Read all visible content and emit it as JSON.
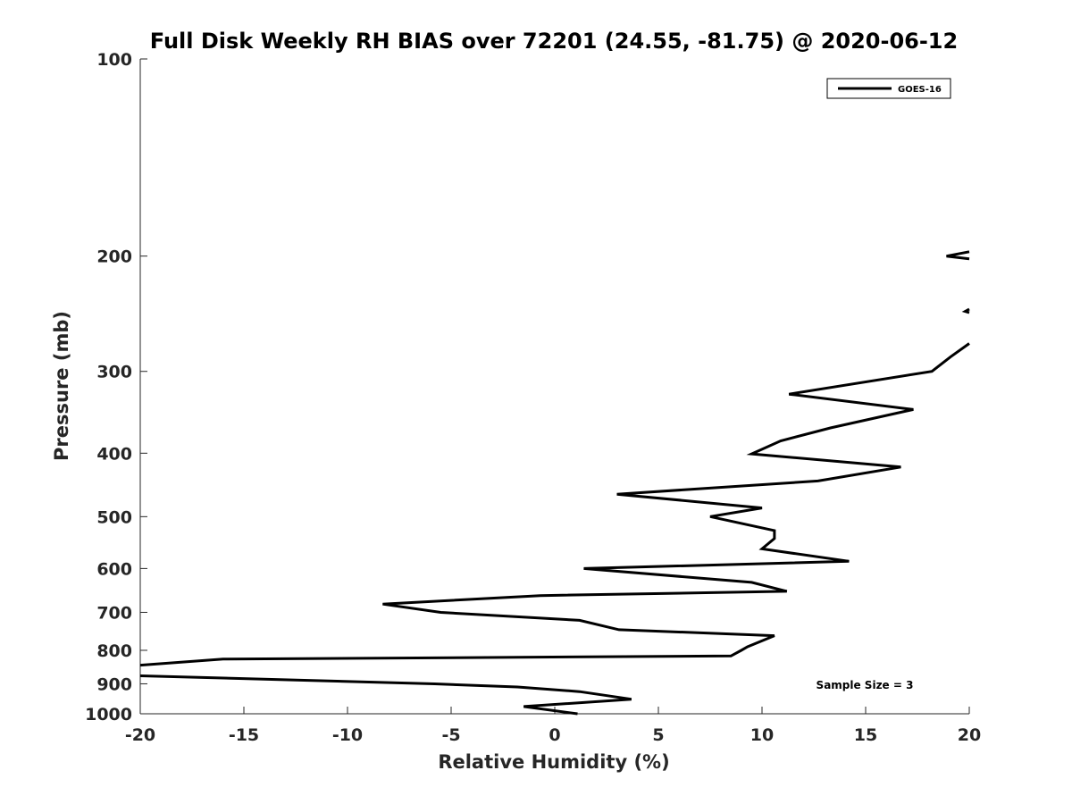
{
  "chart_data": {
    "type": "line",
    "title": "Full Disk Weekly RH BIAS over 72201 (24.55, -81.75) @ 2020-06-12",
    "xlabel": "Relative Humidity (%)",
    "ylabel": "Pressure (mb)",
    "xlim": [
      -20,
      20
    ],
    "ylim": [
      100,
      1000
    ],
    "y_scale": "log",
    "y_reversed": true,
    "x_ticks": [
      -20,
      -15,
      -10,
      -5,
      0,
      5,
      10,
      15,
      20
    ],
    "x_tick_labels": [
      "-20",
      "-15",
      "-10",
      "-5",
      "0",
      "5",
      "10",
      "15",
      "20"
    ],
    "y_ticks": [
      100,
      200,
      300,
      400,
      500,
      600,
      700,
      800,
      900,
      1000
    ],
    "y_tick_labels": [
      "100",
      "200",
      "300",
      "400",
      "500",
      "600",
      "700",
      "800",
      "900",
      "1000"
    ],
    "grid": false,
    "legend_position": "top-right",
    "annotation": "Sample Size = 3",
    "series": [
      {
        "name": "GOES-16",
        "color": "#000000",
        "segments": [
          [
            {
              "x": 1.1,
              "y": 1000
            },
            {
              "x": -1.5,
              "y": 975
            },
            {
              "x": 3.7,
              "y": 950
            },
            {
              "x": 1.2,
              "y": 925
            },
            {
              "x": -1.8,
              "y": 910
            },
            {
              "x": -5.8,
              "y": 900
            },
            {
              "x": -20.0,
              "y": 875
            }
          ],
          [
            {
              "x": -20.0,
              "y": 843
            },
            {
              "x": -16.0,
              "y": 825
            },
            {
              "x": 8.5,
              "y": 816
            },
            {
              "x": 9.0,
              "y": 800
            },
            {
              "x": 9.3,
              "y": 790
            },
            {
              "x": 10.6,
              "y": 760
            },
            {
              "x": 3.1,
              "y": 744
            },
            {
              "x": 1.2,
              "y": 720
            },
            {
              "x": -5.5,
              "y": 700
            },
            {
              "x": -8.3,
              "y": 680
            },
            {
              "x": -0.7,
              "y": 660
            },
            {
              "x": 11.2,
              "y": 650
            },
            {
              "x": 9.5,
              "y": 630
            },
            {
              "x": 1.4,
              "y": 600
            },
            {
              "x": 14.2,
              "y": 585
            },
            {
              "x": 10.0,
              "y": 560
            },
            {
              "x": 10.6,
              "y": 540
            },
            {
              "x": 10.6,
              "y": 525
            },
            {
              "x": 7.5,
              "y": 500
            },
            {
              "x": 10.0,
              "y": 485
            },
            {
              "x": 3.0,
              "y": 462
            },
            {
              "x": 12.7,
              "y": 441
            },
            {
              "x": 16.7,
              "y": 420
            },
            {
              "x": 9.5,
              "y": 401
            },
            {
              "x": 10.9,
              "y": 383
            },
            {
              "x": 13.3,
              "y": 366
            },
            {
              "x": 17.3,
              "y": 343
            },
            {
              "x": 11.3,
              "y": 325
            },
            {
              "x": 18.2,
              "y": 300
            },
            {
              "x": 19.1,
              "y": 285
            },
            {
              "x": 20.0,
              "y": 272
            }
          ],
          [
            {
              "x": 20.0,
              "y": 244
            },
            {
              "x": 19.8,
              "y": 243
            },
            {
              "x": 20.0,
              "y": 241
            }
          ],
          [
            {
              "x": 20.0,
              "y": 202
            },
            {
              "x": 18.9,
              "y": 200
            },
            {
              "x": 20.0,
              "y": 197
            }
          ]
        ]
      }
    ]
  }
}
